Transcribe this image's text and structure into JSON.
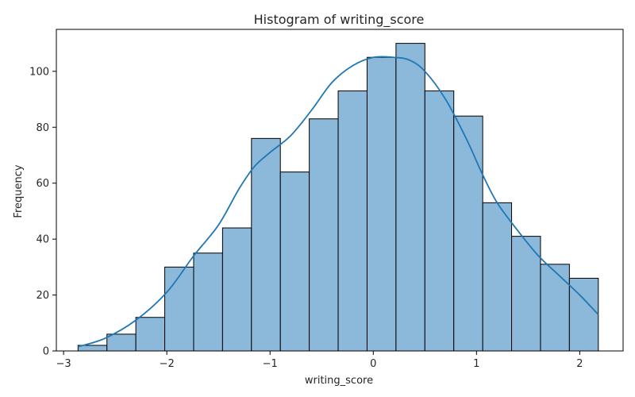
{
  "chart_data": {
    "type": "histogram",
    "title": "Histogram of writing_score",
    "xlabel": "writing_score",
    "ylabel": "Frequency",
    "xlim": [
      -3.07,
      2.42
    ],
    "ylim": [
      0,
      115
    ],
    "xticks": [
      -3,
      -2,
      -1,
      0,
      1,
      2
    ],
    "xtick_labels": [
      "−3",
      "−2",
      "−1",
      "0",
      "1",
      "2"
    ],
    "yticks": [
      0,
      20,
      40,
      60,
      80,
      100
    ],
    "yticks_labels": [
      "0",
      "20",
      "40",
      "60",
      "80",
      "100"
    ],
    "bins": [
      {
        "x0": -2.86,
        "x1": -2.58,
        "count": 2
      },
      {
        "x0": -2.58,
        "x1": -2.3,
        "count": 6
      },
      {
        "x0": -2.3,
        "x1": -2.02,
        "count": 12
      },
      {
        "x0": -2.02,
        "x1": -1.74,
        "count": 30
      },
      {
        "x0": -1.74,
        "x1": -1.46,
        "count": 35
      },
      {
        "x0": -1.46,
        "x1": -1.18,
        "count": 44
      },
      {
        "x0": -1.18,
        "x1": -0.9,
        "count": 76
      },
      {
        "x0": -0.9,
        "x1": -0.62,
        "count": 64
      },
      {
        "x0": -0.62,
        "x1": -0.34,
        "count": 83
      },
      {
        "x0": -0.34,
        "x1": -0.06,
        "count": 93
      },
      {
        "x0": -0.06,
        "x1": 0.22,
        "count": 105
      },
      {
        "x0": 0.22,
        "x1": 0.5,
        "count": 110
      },
      {
        "x0": 0.5,
        "x1": 0.78,
        "count": 93
      },
      {
        "x0": 0.78,
        "x1": 1.06,
        "count": 84
      },
      {
        "x0": 1.06,
        "x1": 1.34,
        "count": 53
      },
      {
        "x0": 1.34,
        "x1": 1.62,
        "count": 41
      },
      {
        "x0": 1.62,
        "x1": 1.9,
        "count": 31
      },
      {
        "x0": 1.9,
        "x1": 2.18,
        "count": 26
      }
    ],
    "kde": {
      "x": [
        -2.86,
        -2.6,
        -2.3,
        -2.0,
        -1.74,
        -1.5,
        -1.3,
        -1.15,
        -1.0,
        -0.8,
        -0.6,
        -0.4,
        -0.2,
        0.0,
        0.2,
        0.35,
        0.5,
        0.7,
        0.9,
        1.06,
        1.2,
        1.4,
        1.6,
        1.8,
        2.0,
        2.18
      ],
      "y": [
        1.5,
        4.5,
        11,
        21,
        34,
        45,
        58,
        66,
        71,
        77,
        86,
        96,
        102,
        105,
        105,
        104,
        100,
        90,
        76,
        63,
        53,
        43,
        34,
        27,
        20,
        13
      ]
    },
    "colors": {
      "bar_fill": "#8cb8da",
      "bar_edge": "#000000",
      "kde_line": "#1f77b4",
      "axis": "#000000",
      "text": "#262626"
    },
    "grid": false,
    "legend": "none"
  }
}
